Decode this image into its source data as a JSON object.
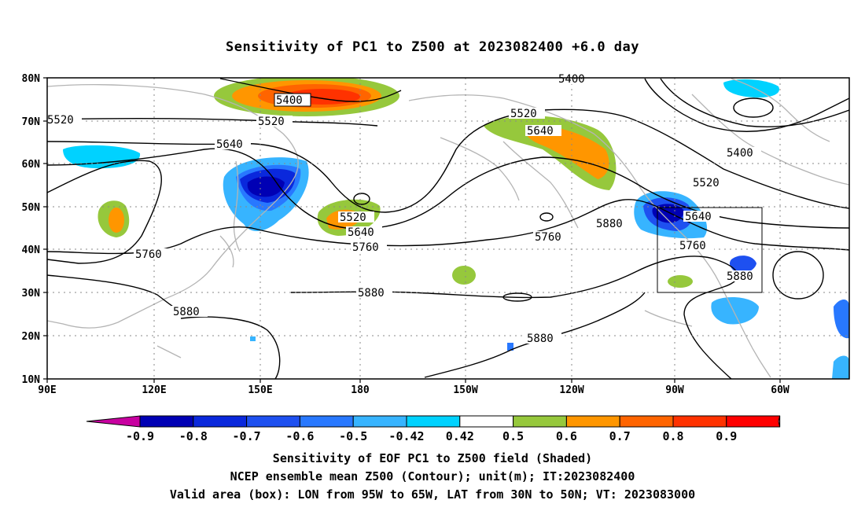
{
  "title": "Sensitivity of PC1 to Z500 at 2023082400 +6.0 day",
  "lat_labels": [
    "80N",
    "70N",
    "60N",
    "50N",
    "40N",
    "30N",
    "20N",
    "10N"
  ],
  "lon_labels": [
    "90E",
    "120E",
    "150E",
    "180",
    "150W",
    "120W",
    "90W",
    "60W"
  ],
  "contour_labels": [
    "5400",
    "5400",
    "5400",
    "5520",
    "5520",
    "5520",
    "5520",
    "5520",
    "5640",
    "5640",
    "5640",
    "5640",
    "5760",
    "5760",
    "5760",
    "5760",
    "5880",
    "5880",
    "5880",
    "5880",
    "5880"
  ],
  "colorbar": {
    "ticks": [
      "-0.9",
      "-0.8",
      "-0.7",
      "-0.6",
      "-0.5",
      "-0.42",
      "0.42",
      "0.5",
      "0.6",
      "0.7",
      "0.8",
      "0.9"
    ],
    "colors": [
      "#c800a0",
      "#0000b4",
      "#0a28dc",
      "#1e50f0",
      "#2878ff",
      "#37b4ff",
      "#00d2ff",
      "#ffffff",
      "#96c83c",
      "#ff9600",
      "#ff6400",
      "#ff3200",
      "#ff0000",
      "#ff96c8"
    ]
  },
  "valid_box": {
    "lon_from": "95W",
    "lon_to": "65W",
    "lat_from": "30N",
    "lat_to": "50N"
  },
  "captions": [
    "Sensitivity of EOF PC1 to Z500 field (Shaded)",
    "NCEP ensemble mean Z500 (Contour); unit(m); IT:2023082400",
    "Valid area (box): LON from 95W to 65W, LAT from 30N to 50N; VT: 2023083000"
  ]
}
